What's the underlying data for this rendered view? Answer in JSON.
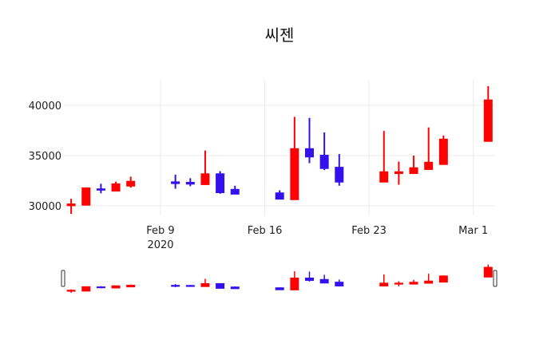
{
  "title": "씨젠",
  "colors": {
    "increasing": "#ff0000",
    "decreasing": "#3311ee",
    "grid": "#ebebeb",
    "axis_text": "#222222",
    "background": "#ffffff",
    "handle_stroke": "#333333"
  },
  "chart_data": {
    "type": "candlestick",
    "title": "씨젠",
    "xlabel": "",
    "ylabel": "",
    "ylim": [
      28800,
      42500
    ],
    "yticks": [
      30000,
      35000,
      40000
    ],
    "ytick_labels": [
      "30000",
      "35000",
      "40000"
    ],
    "xticks": [
      {
        "date": "2020-02-09",
        "label": "Feb 9",
        "sublabel": "2020"
      },
      {
        "date": "2020-02-16",
        "label": "Feb 16",
        "sublabel": ""
      },
      {
        "date": "2020-02-23",
        "label": "Feb 23",
        "sublabel": ""
      },
      {
        "date": "2020-03-01",
        "label": "Mar 1",
        "sublabel": ""
      }
    ],
    "xrange": [
      "2020-02-02T12:00",
      "2020-03-03"
    ],
    "grid": true,
    "legend": false,
    "rangeslider": true,
    "candles": [
      {
        "date": "2020-02-03",
        "open": 30050,
        "high": 30700,
        "low": 29200,
        "close": 30150
      },
      {
        "date": "2020-02-04",
        "open": 30100,
        "high": 31750,
        "low": 30100,
        "close": 31750
      },
      {
        "date": "2020-02-05",
        "open": 31650,
        "high": 32200,
        "low": 31250,
        "close": 31600
      },
      {
        "date": "2020-02-06",
        "open": 31500,
        "high": 32400,
        "low": 31500,
        "close": 32150
      },
      {
        "date": "2020-02-07",
        "open": 32000,
        "high": 32900,
        "low": 31800,
        "close": 32400
      },
      {
        "date": "2020-02-10",
        "open": 32350,
        "high": 33100,
        "low": 31700,
        "close": 32250
      },
      {
        "date": "2020-02-11",
        "open": 32300,
        "high": 32750,
        "low": 31950,
        "close": 32200
      },
      {
        "date": "2020-02-12",
        "open": 32150,
        "high": 35500,
        "low": 32100,
        "close": 33150
      },
      {
        "date": "2020-02-13",
        "open": 33150,
        "high": 33450,
        "low": 31200,
        "close": 31350
      },
      {
        "date": "2020-02-14",
        "open": 31600,
        "high": 32000,
        "low": 31200,
        "close": 31200
      },
      {
        "date": "2020-02-17",
        "open": 31250,
        "high": 31550,
        "low": 30700,
        "close": 30700
      },
      {
        "date": "2020-02-18",
        "open": 30650,
        "high": 38850,
        "low": 30650,
        "close": 35650
      },
      {
        "date": "2020-02-19",
        "open": 35650,
        "high": 38750,
        "low": 34250,
        "close": 34900
      },
      {
        "date": "2020-02-20",
        "open": 35000,
        "high": 37300,
        "low": 33550,
        "close": 33750
      },
      {
        "date": "2020-02-21",
        "open": 33800,
        "high": 35150,
        "low": 32000,
        "close": 32400
      },
      {
        "date": "2020-02-24",
        "open": 32400,
        "high": 37450,
        "low": 32400,
        "close": 33350
      },
      {
        "date": "2020-02-25",
        "open": 33250,
        "high": 34400,
        "low": 32100,
        "close": 33350
      },
      {
        "date": "2020-02-26",
        "open": 33250,
        "high": 35000,
        "low": 33250,
        "close": 33750
      },
      {
        "date": "2020-02-27",
        "open": 33650,
        "high": 37800,
        "low": 33650,
        "close": 34300
      },
      {
        "date": "2020-02-28",
        "open": 34150,
        "high": 37000,
        "low": 34150,
        "close": 36600
      },
      {
        "date": "2020-03-02",
        "open": 36450,
        "high": 41900,
        "low": 36450,
        "close": 40500
      }
    ]
  }
}
